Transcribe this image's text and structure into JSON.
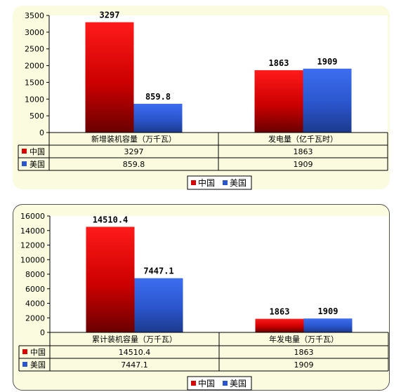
{
  "chart_data": [
    {
      "type": "bar",
      "categories": [
        "新增装机容量（万千瓦）",
        "发电量（亿千瓦时）"
      ],
      "series": [
        {
          "name": "中国",
          "color": "#d80000",
          "values": [
            3297,
            1863
          ],
          "labels": [
            "3297",
            "1863"
          ]
        },
        {
          "name": "美国",
          "color": "#2a55cc",
          "values": [
            859.8,
            1909
          ],
          "labels": [
            "859.8",
            "1909"
          ]
        }
      ],
      "yticks": [
        "0",
        "500",
        "1000",
        "1500",
        "2000",
        "2500",
        "3000",
        "3500"
      ],
      "ylim": [
        0,
        3500
      ],
      "grid": false,
      "legend_position": "bottom",
      "data_table": true
    },
    {
      "type": "bar",
      "categories": [
        "累计装机容量（万千瓦）",
        "年发电量（万千瓦）"
      ],
      "series": [
        {
          "name": "中国",
          "color": "#d80000",
          "values": [
            14510.4,
            1863
          ],
          "labels": [
            "14510.4",
            "1863"
          ]
        },
        {
          "name": "美国",
          "color": "#2a55cc",
          "values": [
            7447.1,
            1909
          ],
          "labels": [
            "7447.1",
            "1909"
          ]
        }
      ],
      "yticks": [
        "0",
        "2000",
        "4000",
        "6000",
        "8000",
        "10000",
        "12000",
        "14000",
        "16000"
      ],
      "ylim": [
        0,
        16000
      ],
      "grid": false,
      "legend_position": "bottom",
      "data_table": true
    }
  ]
}
